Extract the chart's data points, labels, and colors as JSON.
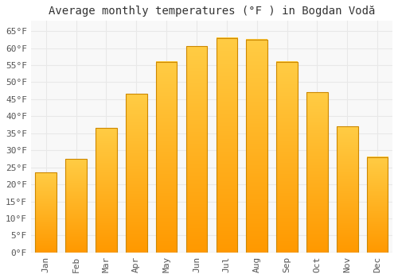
{
  "title": "Average monthly temperatures (°F ) in Bogdan Vodă",
  "months": [
    "Jan",
    "Feb",
    "Mar",
    "Apr",
    "May",
    "Jun",
    "Jul",
    "Aug",
    "Sep",
    "Oct",
    "Nov",
    "Dec"
  ],
  "values": [
    23.5,
    27.5,
    36.5,
    46.5,
    56.0,
    60.5,
    63.0,
    62.5,
    56.0,
    47.0,
    37.0,
    28.0
  ],
  "bar_color_top": "#FFCC44",
  "bar_color_bottom": "#FF9900",
  "bar_edge_color": "#CC8800",
  "background_color": "#ffffff",
  "plot_bg_color": "#f8f8f8",
  "grid_color": "#e8e8e8",
  "ylim": [
    0,
    68
  ],
  "yticks": [
    0,
    5,
    10,
    15,
    20,
    25,
    30,
    35,
    40,
    45,
    50,
    55,
    60,
    65
  ],
  "title_fontsize": 10,
  "tick_fontsize": 8,
  "tick_font": "monospace"
}
